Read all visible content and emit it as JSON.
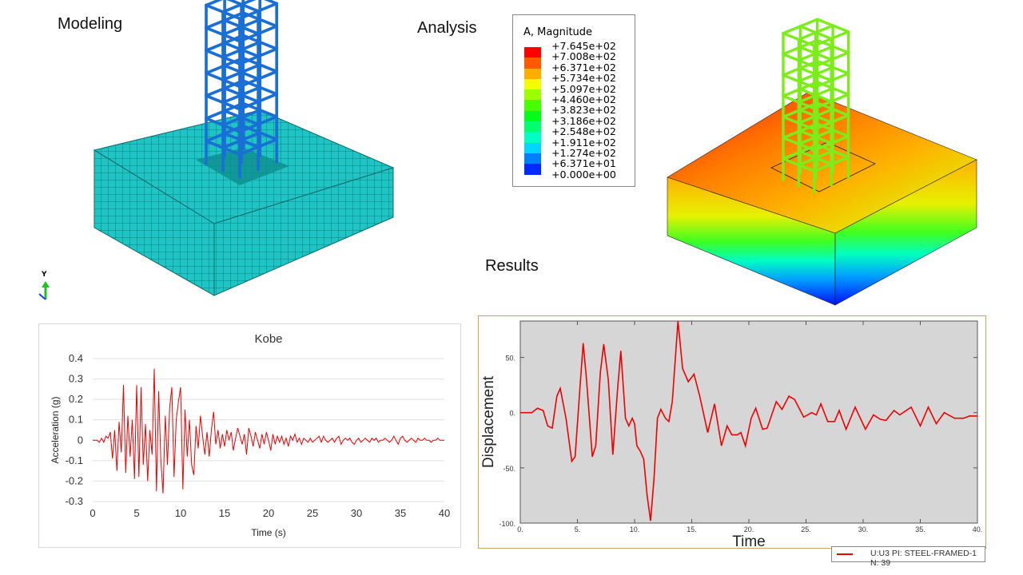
{
  "labels": {
    "modeling": "Modeling",
    "analysis": "Analysis",
    "results": "Results",
    "axis_y": "Y"
  },
  "contour_legend": {
    "title": "A, Magnitude",
    "values": [
      "+7.645e+02",
      "+7.008e+02",
      "+6.371e+02",
      "+5.734e+02",
      "+5.097e+02",
      "+4.460e+02",
      "+3.823e+02",
      "+3.186e+02",
      "+2.548e+02",
      "+1.911e+02",
      "+1.274e+02",
      "+6.371e+01",
      "+0.000e+00"
    ],
    "colors": [
      "#ff0000",
      "#ff5a00",
      "#ffae00",
      "#f2ff00",
      "#9cff00",
      "#46ff00",
      "#00ff18",
      "#00ff6e",
      "#00ffc4",
      "#00d6ff",
      "#0080ff",
      "#002aff",
      "#0000ff"
    ]
  },
  "colors": {
    "mesh": "#1fc4c4",
    "frame_model": "#1a6fd6",
    "frame_result": "#7cec1a",
    "series": "#ee0000",
    "plot_bg": "#d6d6d6"
  },
  "chart_data": [
    {
      "type": "line",
      "title": "Kobe",
      "xlabel": "Time (s)",
      "ylabel": "Acceleration (g)",
      "xlim": [
        0,
        40
      ],
      "ylim": [
        -0.3,
        0.4
      ],
      "xticks": [
        "0",
        "5",
        "10",
        "15",
        "20",
        "25",
        "30",
        "35",
        "40"
      ],
      "yticks": [
        "0.4",
        "0.3",
        "0.2",
        "0.1",
        "0",
        "-0.1",
        "-0.2",
        "-0.3"
      ],
      "grid": true,
      "points": [
        [
          0,
          0
        ],
        [
          0.25,
          0
        ],
        [
          0.5,
          0
        ],
        [
          0.75,
          -0.01
        ],
        [
          1,
          0.01
        ],
        [
          1.25,
          -0.01
        ],
        [
          1.5,
          0.02
        ],
        [
          1.75,
          0.01
        ],
        [
          2,
          0.04
        ],
        [
          2.25,
          -0.09
        ],
        [
          2.5,
          0.05
        ],
        [
          2.75,
          -0.15
        ],
        [
          3,
          0.09
        ],
        [
          3.25,
          -0.06
        ],
        [
          3.5,
          0.27
        ],
        [
          3.75,
          -0.16
        ],
        [
          4,
          0.12
        ],
        [
          4.25,
          -0.08
        ],
        [
          4.5,
          0.1
        ],
        [
          4.75,
          -0.19
        ],
        [
          5,
          0.27
        ],
        [
          5.25,
          -0.18
        ],
        [
          5.5,
          0.26
        ],
        [
          5.75,
          -0.12
        ],
        [
          6,
          0.08
        ],
        [
          6.25,
          -0.2
        ],
        [
          6.5,
          0.05
        ],
        [
          6.75,
          -0.07
        ],
        [
          7,
          0.35
        ],
        [
          7.25,
          -0.25
        ],
        [
          7.5,
          0.24
        ],
        [
          7.75,
          -0.1
        ],
        [
          8,
          -0.26
        ],
        [
          8.25,
          0.12
        ],
        [
          8.5,
          -0.12
        ],
        [
          8.75,
          0.16
        ],
        [
          9,
          0.26
        ],
        [
          9.25,
          -0.18
        ],
        [
          9.5,
          0.1
        ],
        [
          9.75,
          0.19
        ],
        [
          10,
          0.26
        ],
        [
          10.25,
          -0.24
        ],
        [
          10.5,
          0.15
        ],
        [
          10.75,
          -0.08
        ],
        [
          11,
          0.1
        ],
        [
          11.25,
          -0.12
        ],
        [
          11.5,
          -0.17
        ],
        [
          11.75,
          0.07
        ],
        [
          12,
          -0.04
        ],
        [
          12.25,
          0.12
        ],
        [
          12.5,
          0.02
        ],
        [
          12.75,
          -0.07
        ],
        [
          13,
          0.04
        ],
        [
          13.25,
          -0.08
        ],
        [
          13.5,
          0.05
        ],
        [
          13.75,
          0.14
        ],
        [
          14,
          -0.02
        ],
        [
          14.25,
          0.05
        ],
        [
          14.5,
          -0.04
        ],
        [
          14.75,
          0.03
        ],
        [
          15,
          -0.03
        ],
        [
          15.25,
          0.05
        ],
        [
          15.5,
          0
        ],
        [
          15.75,
          0.04
        ],
        [
          16,
          -0.05
        ],
        [
          16.25,
          0.01
        ],
        [
          16.5,
          0.06
        ],
        [
          16.75,
          0.02
        ],
        [
          17,
          -0.02
        ],
        [
          17.25,
          0.03
        ],
        [
          17.5,
          -0.07
        ],
        [
          17.75,
          0.06
        ],
        [
          18,
          0.02
        ],
        [
          18.25,
          -0.03
        ],
        [
          18.5,
          0.04
        ],
        [
          18.75,
          0
        ],
        [
          19,
          -0.04
        ],
        [
          19.25,
          0.03
        ],
        [
          19.5,
          -0.02
        ],
        [
          19.75,
          0.04
        ],
        [
          20,
          0
        ],
        [
          20.25,
          -0.05
        ],
        [
          20.5,
          0.03
        ],
        [
          20.75,
          -0.02
        ],
        [
          21,
          0.02
        ],
        [
          21.25,
          -0.01
        ],
        [
          21.5,
          0.02
        ],
        [
          21.75,
          -0.02
        ],
        [
          22,
          0.01
        ],
        [
          22.25,
          -0.03
        ],
        [
          22.5,
          0.02
        ],
        [
          22.75,
          0
        ],
        [
          23,
          0.03
        ],
        [
          23.25,
          -0.01
        ],
        [
          23.5,
          0.01
        ],
        [
          23.75,
          -0.02
        ],
        [
          24,
          0.01
        ],
        [
          24.25,
          0
        ],
        [
          24.5,
          -0.01
        ],
        [
          24.75,
          0.01
        ],
        [
          25,
          -0.01
        ],
        [
          25.25,
          0
        ],
        [
          25.5,
          0.01
        ],
        [
          25.75,
          0.02
        ],
        [
          26,
          -0.01
        ],
        [
          26.25,
          0.02
        ],
        [
          26.5,
          0
        ],
        [
          26.75,
          -0.01
        ],
        [
          27,
          0
        ],
        [
          27.25,
          0.01
        ],
        [
          27.5,
          -0.01
        ],
        [
          27.75,
          0.01
        ],
        [
          28,
          0.02
        ],
        [
          28.25,
          -0.02
        ],
        [
          28.5,
          0
        ],
        [
          28.75,
          0.01
        ],
        [
          29,
          0
        ],
        [
          29.25,
          0.01
        ],
        [
          29.5,
          -0.01
        ],
        [
          29.75,
          -0.02
        ],
        [
          30,
          0
        ],
        [
          30.25,
          0.01
        ],
        [
          30.5,
          -0.01
        ],
        [
          30.75,
          0
        ],
        [
          31,
          0.01
        ],
        [
          31.25,
          0
        ],
        [
          31.5,
          -0.01
        ],
        [
          31.75,
          0.01
        ],
        [
          32,
          0
        ],
        [
          32.25,
          0.01
        ],
        [
          32.5,
          -0.01
        ],
        [
          32.75,
          0
        ],
        [
          33,
          0
        ],
        [
          33.25,
          0.01
        ],
        [
          33.5,
          0
        ],
        [
          33.75,
          -0.01
        ],
        [
          34,
          0
        ],
        [
          34.25,
          0.02
        ],
        [
          34.5,
          0
        ],
        [
          34.75,
          -0.02
        ],
        [
          35,
          0.01
        ],
        [
          35.25,
          0.02
        ],
        [
          35.5,
          0
        ],
        [
          35.75,
          -0.01
        ],
        [
          36,
          0
        ],
        [
          36.25,
          0.01
        ],
        [
          36.5,
          0
        ],
        [
          36.75,
          -0.01
        ],
        [
          37,
          0.01
        ],
        [
          37.25,
          0
        ],
        [
          37.5,
          0
        ],
        [
          37.75,
          0.01
        ],
        [
          38,
          0
        ],
        [
          38.25,
          0
        ],
        [
          38.5,
          -0.01
        ],
        [
          38.75,
          0
        ],
        [
          39,
          0
        ],
        [
          39.25,
          0.01
        ],
        [
          39.5,
          0
        ],
        [
          39.75,
          0
        ],
        [
          40,
          0
        ]
      ]
    },
    {
      "type": "line",
      "xlabel": "Time",
      "ylabel": "Displacement",
      "xlim": [
        0,
        40
      ],
      "ylim": [
        -100,
        83
      ],
      "xticks": [
        "0.",
        "5.",
        "10.",
        "15.",
        "20.",
        "25.",
        "30.",
        "35.",
        "40."
      ],
      "yticks": [
        "50.",
        "0.",
        "-50.",
        "-100."
      ],
      "grid": false,
      "legend": {
        "entry": "U:U3 PI: STEEL-FRAMED-1 N: 39",
        "placement": "bottom-right"
      },
      "points": [
        [
          0,
          0
        ],
        [
          1,
          0
        ],
        [
          1.5,
          4
        ],
        [
          2,
          2
        ],
        [
          2.4,
          -12
        ],
        [
          2.8,
          -14
        ],
        [
          3.2,
          15
        ],
        [
          3.5,
          22
        ],
        [
          4,
          -5
        ],
        [
          4.5,
          -44
        ],
        [
          4.8,
          -40
        ],
        [
          5.2,
          20
        ],
        [
          5.5,
          63
        ],
        [
          5.8,
          30
        ],
        [
          6.3,
          -40
        ],
        [
          6.6,
          -30
        ],
        [
          7,
          36
        ],
        [
          7.3,
          62
        ],
        [
          7.7,
          30
        ],
        [
          8.1,
          -38
        ],
        [
          8.5,
          20
        ],
        [
          8.8,
          56
        ],
        [
          9.2,
          -5
        ],
        [
          9.5,
          -12
        ],
        [
          9.8,
          -5
        ],
        [
          10,
          -10
        ],
        [
          10.2,
          -30
        ],
        [
          10.5,
          -35
        ],
        [
          10.8,
          -42
        ],
        [
          11.1,
          -75
        ],
        [
          11.4,
          -98
        ],
        [
          11.7,
          -60
        ],
        [
          12,
          -5
        ],
        [
          12.3,
          3
        ],
        [
          12.7,
          -5
        ],
        [
          13,
          -8
        ],
        [
          13.3,
          10
        ],
        [
          13.8,
          83
        ],
        [
          14.2,
          40
        ],
        [
          14.7,
          28
        ],
        [
          15.2,
          35
        ],
        [
          15.7,
          15
        ],
        [
          16.4,
          -18
        ],
        [
          17,
          8
        ],
        [
          17.6,
          -30
        ],
        [
          18.1,
          -12
        ],
        [
          18.5,
          -20
        ],
        [
          19,
          -20
        ],
        [
          19.3,
          -18
        ],
        [
          19.7,
          -30
        ],
        [
          20.2,
          -5
        ],
        [
          20.6,
          4
        ],
        [
          21.2,
          -15
        ],
        [
          21.6,
          -14
        ],
        [
          22.4,
          10
        ],
        [
          22.9,
          3
        ],
        [
          23.5,
          15
        ],
        [
          24,
          12
        ],
        [
          24.8,
          -4
        ],
        [
          25.5,
          0
        ],
        [
          25.9,
          -2
        ],
        [
          26.3,
          8
        ],
        [
          26.9,
          -8
        ],
        [
          27.5,
          -8
        ],
        [
          27.9,
          2
        ],
        [
          28.5,
          -15
        ],
        [
          29.3,
          5
        ],
        [
          30.2,
          -15
        ],
        [
          30.9,
          -2
        ],
        [
          31.5,
          -6
        ],
        [
          32,
          -7
        ],
        [
          32.7,
          2
        ],
        [
          33.2,
          -2
        ],
        [
          34.2,
          5
        ],
        [
          35,
          -12
        ],
        [
          35.7,
          5
        ],
        [
          36.4,
          -10
        ],
        [
          37.1,
          0
        ],
        [
          38,
          -5
        ],
        [
          38.8,
          -5
        ],
        [
          39.3,
          -3
        ],
        [
          40,
          -3
        ]
      ]
    }
  ]
}
